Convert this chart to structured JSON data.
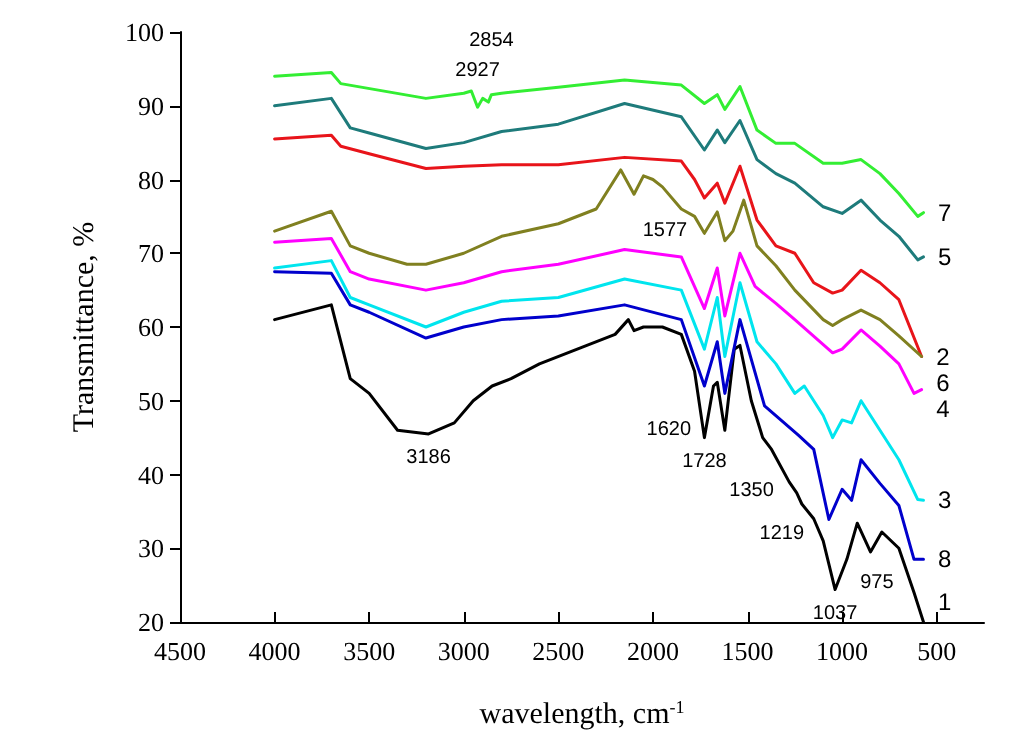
{
  "chart_data": {
    "type": "line",
    "xlabel": "wavelength, cm$^{-1}$",
    "ylabel": "Transmittance, %",
    "xlim": [
      4500,
      250
    ],
    "xticks": [
      4500,
      4000,
      3500,
      3000,
      2500,
      2000,
      1500,
      1000,
      500
    ],
    "ylim": [
      20,
      100
    ],
    "yticks": [
      20,
      30,
      40,
      50,
      60,
      70,
      80,
      90,
      100
    ],
    "grid": false,
    "legend": false,
    "marker": "none",
    "line_style": "solid",
    "series": [
      {
        "name": "1",
        "color": "#000000",
        "x": [
          4000,
          3700,
          3600,
          3500,
          3350,
          3186,
          3050,
          2950,
          2850,
          2750,
          2600,
          2400,
          2200,
          2130,
          2100,
          2050,
          1950,
          1850,
          1780,
          1728,
          1680,
          1660,
          1620,
          1570,
          1540,
          1480,
          1420,
          1373,
          1280,
          1240,
          1213,
          1150,
          1100,
          1037,
          975,
          920,
          850,
          790,
          700,
          620,
          570
        ],
        "values": [
          61,
          63,
          53,
          51,
          46,
          45.5,
          47,
          50,
          52,
          53,
          55,
          57,
          59,
          61,
          59.5,
          60,
          60,
          59,
          54,
          45,
          52,
          52.5,
          46,
          57,
          57.5,
          50,
          45,
          43.4,
          39,
          37.5,
          36,
          34,
          31,
          24.4,
          28.5,
          33.4,
          29.5,
          32.2,
          30,
          24,
          20
        ]
      },
      {
        "name": "2",
        "color": "#e8141a",
        "x": [
          4000,
          3700,
          3650,
          3500,
          3200,
          3000,
          2800,
          2500,
          2150,
          1850,
          1780,
          1728,
          1660,
          1620,
          1540,
          1450,
          1350,
          1250,
          1150,
          1050,
          1000,
          900,
          800,
          700,
          580
        ],
        "values": [
          85.5,
          86,
          84.5,
          83.5,
          81.5,
          81.8,
          82,
          82,
          83,
          82.5,
          80,
          77.5,
          79.5,
          76.8,
          81.8,
          74.5,
          71,
          70,
          66,
          64.6,
          65,
          67.7,
          66,
          63.7,
          56
        ]
      },
      {
        "name": "3",
        "color": "#00e5ee",
        "x": [
          4000,
          3700,
          3600,
          3500,
          3200,
          3000,
          2800,
          2500,
          2150,
          1850,
          1728,
          1660,
          1620,
          1540,
          1450,
          1350,
          1250,
          1200,
          1100,
          1050,
          1000,
          950,
          900,
          800,
          700,
          600,
          570
        ],
        "values": [
          68,
          69,
          64,
          63,
          60,
          62,
          63.5,
          64,
          66.5,
          65,
          57,
          64,
          56,
          66,
          58,
          55,
          51,
          52,
          48,
          45,
          47.4,
          47,
          50,
          46,
          42,
          36.6,
          36.5
        ]
      },
      {
        "name": "4",
        "color": "#ff00ff",
        "x": [
          4000,
          3700,
          3600,
          3500,
          3200,
          3000,
          2800,
          2500,
          2150,
          1850,
          1728,
          1660,
          1620,
          1540,
          1460,
          1350,
          1250,
          1050,
          1000,
          900,
          800,
          700,
          620,
          580
        ],
        "values": [
          71.5,
          72,
          67.5,
          66.5,
          65,
          66,
          67.5,
          68.5,
          70.5,
          69.5,
          62.5,
          68,
          61.5,
          70,
          65.5,
          63.2,
          61,
          56.5,
          57,
          59.6,
          57.4,
          55,
          51,
          51.5
        ]
      },
      {
        "name": "5",
        "color": "#1e7b7b",
        "x": [
          4000,
          3700,
          3600,
          3500,
          3200,
          3000,
          2800,
          2500,
          2150,
          1850,
          1728,
          1660,
          1620,
          1540,
          1450,
          1350,
          1250,
          1100,
          1000,
          900,
          800,
          700,
          600,
          570
        ],
        "values": [
          90,
          91,
          87,
          86.3,
          84.2,
          85,
          86.5,
          87.5,
          90.3,
          88.5,
          84,
          86.7,
          85,
          88,
          82.7,
          80.8,
          79.5,
          76.3,
          75.4,
          77.2,
          74.5,
          72.3,
          69.1,
          69.5
        ]
      },
      {
        "name": "6",
        "color": "#808020",
        "x": [
          4000,
          3700,
          3600,
          3500,
          3300,
          3200,
          3000,
          2800,
          2500,
          2300,
          2170,
          2100,
          2050,
          2000,
          1950,
          1850,
          1780,
          1728,
          1660,
          1620,
          1577,
          1520,
          1450,
          1350,
          1250,
          1100,
          1050,
          1000,
          900,
          800,
          700,
          580
        ],
        "values": [
          73,
          75.7,
          71,
          70,
          68.5,
          68.5,
          70,
          72.3,
          74,
          76,
          81.3,
          78,
          80.5,
          80,
          79,
          76,
          75,
          72.7,
          75.6,
          71.7,
          73,
          77.2,
          71,
          68.3,
          65,
          61,
          60.2,
          61,
          62.3,
          61,
          58.8,
          56
        ]
      },
      {
        "name": "7",
        "color": "#33ee33",
        "x": [
          4000,
          3700,
          3650,
          3200,
          3000,
          2960,
          2927,
          2900,
          2870,
          2854,
          2800,
          2500,
          2150,
          1850,
          1728,
          1660,
          1620,
          1540,
          1450,
          1350,
          1250,
          1100,
          1000,
          900,
          800,
          700,
          600,
          570
        ],
        "values": [
          94,
          94.5,
          93,
          91,
          91.7,
          92,
          89.8,
          91,
          90.5,
          91.5,
          91.7,
          92.5,
          93.5,
          92.8,
          90.3,
          91.5,
          89.5,
          92.6,
          86.7,
          84.9,
          84.9,
          82.2,
          82.2,
          82.7,
          80.8,
          78.1,
          75,
          75.5
        ]
      },
      {
        "name": "8",
        "color": "#0000cc",
        "x": [
          4000,
          3700,
          3600,
          3500,
          3200,
          3000,
          2800,
          2500,
          2150,
          1850,
          1728,
          1660,
          1620,
          1540,
          1410,
          1230,
          1150,
          1070,
          1000,
          950,
          900,
          800,
          700,
          620,
          570
        ],
        "values": [
          67.5,
          67.3,
          63,
          62,
          58.5,
          60,
          61,
          61.5,
          63,
          61,
          52,
          58,
          51,
          61,
          49.3,
          45.3,
          43.4,
          33.9,
          38,
          36.5,
          42,
          38.8,
          35.8,
          28.5,
          28.5
        ]
      }
    ],
    "annotations": [
      {
        "text": "2927",
        "x": 2927,
        "y": 89.8
      },
      {
        "text": "2854",
        "x": 2854,
        "y": 91.5
      },
      {
        "text": "1577",
        "x": 1577,
        "y": 73
      },
      {
        "text": "3186",
        "x": 3186,
        "y": 45.5
      },
      {
        "text": "1728",
        "x": 1728,
        "y": 45
      },
      {
        "text": "1620",
        "x": 1620,
        "y": 46
      },
      {
        "text": "1350",
        "x": 1373,
        "y": 43.4
      },
      {
        "text": "1219",
        "x": 1213,
        "y": 36
      },
      {
        "text": "1037",
        "x": 1037,
        "y": 24.4
      },
      {
        "text": "975",
        "x": 975,
        "y": 28.5
      }
    ]
  }
}
